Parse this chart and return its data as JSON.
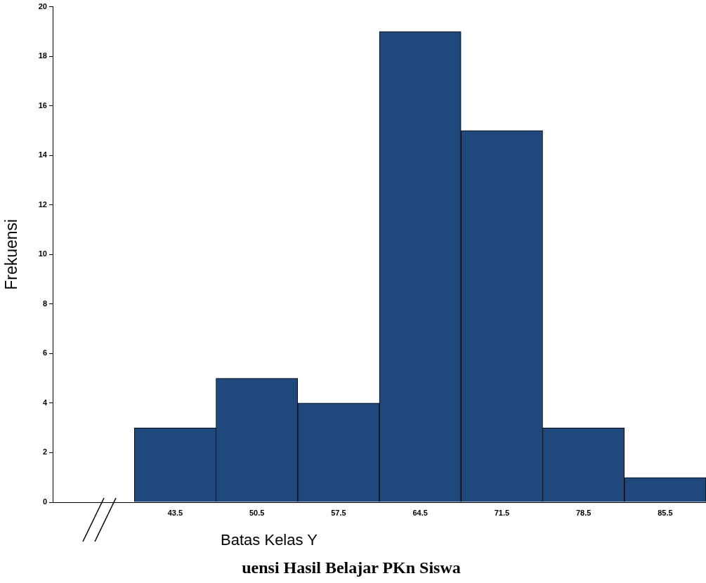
{
  "chart_data": {
    "type": "bar",
    "title": "uensi Hasil Belajar PKn Siswa",
    "xlabel": "Batas Kelas Y",
    "ylabel": "Frekuensi",
    "categories": [
      null,
      "43.5",
      "50.5",
      "57.5",
      "64.5",
      "71.5",
      "78.5",
      "85.5"
    ],
    "values": [
      null,
      3,
      5,
      4,
      19,
      15,
      3,
      1
    ],
    "color": "#1f497d",
    "ylim": [
      0,
      20
    ],
    "yticks": [
      0,
      2,
      4,
      6,
      8,
      10,
      12,
      14,
      16,
      18,
      20
    ],
    "grid": false,
    "legend": false
  }
}
